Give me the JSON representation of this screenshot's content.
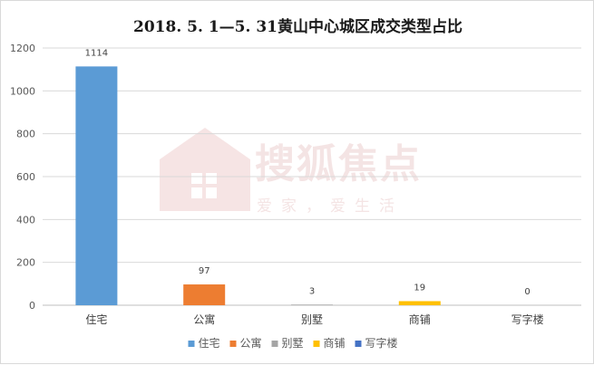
{
  "watermark": {
    "brand": "搜狐焦点",
    "slogan": "爱家，爱生活"
  },
  "chart_data": {
    "type": "bar",
    "title": "2018. 5. 1—5. 31黄山中心城区成交类型占比",
    "categories": [
      "住宅",
      "公寓",
      "别墅",
      "商铺",
      "写字楼"
    ],
    "values": [
      1114,
      97,
      3,
      19,
      0
    ],
    "colors": [
      "#5b9bd5",
      "#ed7d31",
      "#a5a5a5",
      "#ffc000",
      "#4472c4"
    ],
    "ylim": [
      0,
      1200
    ],
    "yticks": [
      0,
      200,
      400,
      600,
      800,
      1000,
      1200
    ],
    "grid": true,
    "legend_position": "bottom",
    "xlabel": "",
    "ylabel": ""
  }
}
